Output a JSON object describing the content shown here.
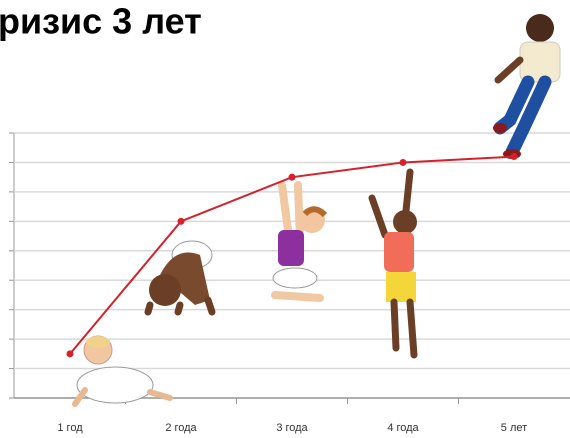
{
  "chart_data": {
    "type": "line",
    "title": "ризис 3 лет",
    "categories": [
      "1 год",
      "2 года",
      "3 года",
      "4 года",
      "5 лет"
    ],
    "values": [
      1.5,
      6,
      7.5,
      8,
      8.2
    ],
    "color": "#d6202a",
    "ylim": [
      0,
      9
    ],
    "yticks": [
      0,
      1,
      2,
      3,
      4,
      5,
      6,
      7,
      8,
      9
    ],
    "grid": true
  }
}
